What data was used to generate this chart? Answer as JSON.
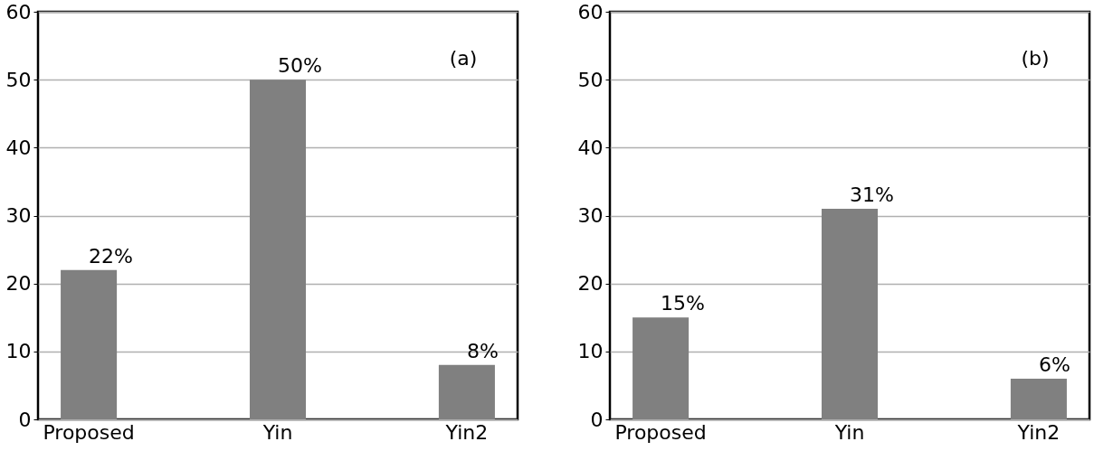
{
  "chart_data": [
    {
      "type": "bar",
      "categories": [
        "Proposed",
        "Yin",
        "Yin2"
      ],
      "values": [
        22,
        50,
        8
      ],
      "value_labels": [
        "22%",
        "50%",
        "8%"
      ],
      "color": "#808080",
      "ylim": [
        0,
        60
      ],
      "yticks": [
        0,
        10,
        20,
        30,
        40,
        50,
        60
      ],
      "grid": "y",
      "annotations": [
        "(a)"
      ]
    },
    {
      "type": "bar",
      "categories": [
        "Proposed",
        "Yin",
        "Yin2"
      ],
      "values": [
        15,
        31,
        6
      ],
      "value_labels": [
        "15%",
        "31%",
        "6%"
      ],
      "color": "#808080",
      "ylim": [
        0,
        60
      ],
      "yticks": [
        0,
        10,
        20,
        30,
        40,
        50,
        60
      ],
      "grid": "y",
      "annotations": [
        "(b)"
      ]
    }
  ]
}
